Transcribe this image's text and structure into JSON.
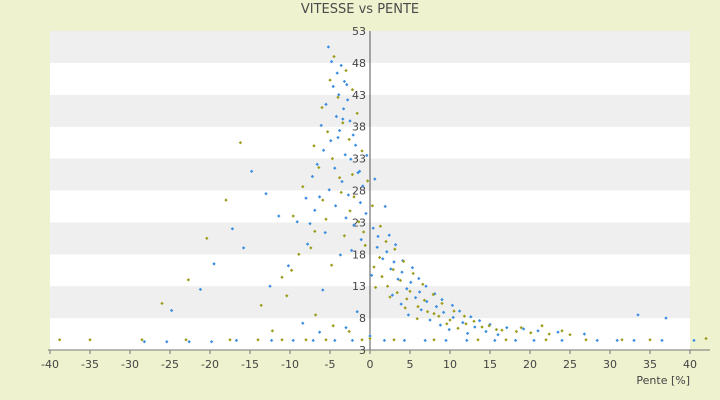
{
  "chart_data": {
    "type": "scatter",
    "title": "VITESSE vs PENTE",
    "xlabel": "Pente [%]",
    "ylabel": "",
    "xlim": [
      -40,
      40
    ],
    "ylim": [
      3,
      53
    ],
    "x_ticks": [
      -40,
      -35,
      -30,
      -25,
      -20,
      -15,
      -10,
      -5,
      0,
      5,
      10,
      15,
      20,
      25,
      30,
      35,
      40
    ],
    "y_ticks": [
      3,
      8,
      13,
      18,
      23,
      28,
      33,
      38,
      43,
      48,
      53
    ],
    "grid": "horizontal alternating bands",
    "legend": "none",
    "colors": {
      "series1": "#3a8ee0",
      "series2": "#9c9c1c",
      "band_light": "#ffffff",
      "band_dark": "#efefef",
      "background": "#eef2cf"
    },
    "series": [
      {
        "color": "#3a8ee0",
        "points": [
          [
            -5.2,
            50.5
          ],
          [
            -4.8,
            48.2
          ],
          [
            -3.6,
            47.6
          ],
          [
            -4.1,
            46.4
          ],
          [
            -3.2,
            45.1
          ],
          [
            -4.6,
            44.3
          ],
          [
            -3.9,
            43.0
          ],
          [
            -2.8,
            42.2
          ],
          [
            -5.5,
            41.5
          ],
          [
            -3.3,
            40.8
          ],
          [
            -4.2,
            39.6
          ],
          [
            -2.5,
            38.9
          ],
          [
            -6.1,
            38.2
          ],
          [
            -3.8,
            37.4
          ],
          [
            -2.1,
            36.7
          ],
          [
            -4.9,
            35.8
          ],
          [
            -1.8,
            35.1
          ],
          [
            -5.8,
            34.3
          ],
          [
            -3.1,
            33.6
          ],
          [
            -2.4,
            32.9
          ],
          [
            -6.6,
            32.1
          ],
          [
            -4.4,
            31.5
          ],
          [
            -1.5,
            30.8
          ],
          [
            -7.2,
            30.2
          ],
          [
            -3.5,
            29.4
          ],
          [
            -0.9,
            28.7
          ],
          [
            -5.1,
            28.1
          ],
          [
            -2.7,
            27.3
          ],
          [
            -8.0,
            26.8
          ],
          [
            -1.2,
            26.1
          ],
          [
            -4.3,
            25.6
          ],
          [
            -6.9,
            24.9
          ],
          [
            -0.5,
            24.4
          ],
          [
            -3.0,
            23.7
          ],
          [
            -9.1,
            23.1
          ],
          [
            -2.0,
            22.6
          ],
          [
            0.4,
            22.1
          ],
          [
            -5.6,
            21.4
          ],
          [
            1.0,
            20.8
          ],
          [
            -1.1,
            20.3
          ],
          [
            -7.8,
            19.6
          ],
          [
            0.9,
            19.1
          ],
          [
            2.1,
            18.4
          ],
          [
            -3.7,
            17.9
          ],
          [
            1.6,
            17.3
          ],
          [
            3.0,
            16.8
          ],
          [
            -10.2,
            16.2
          ],
          [
            2.6,
            15.7
          ],
          [
            4.0,
            15.2
          ],
          [
            0.2,
            14.7
          ],
          [
            3.5,
            14.1
          ],
          [
            5.1,
            13.6
          ],
          [
            -12.5,
            13.0
          ],
          [
            4.6,
            12.6
          ],
          [
            6.2,
            12.1
          ],
          [
            2.8,
            11.6
          ],
          [
            5.7,
            11.2
          ],
          [
            7.1,
            10.6
          ],
          [
            3.9,
            10.2
          ],
          [
            8.3,
            9.8
          ],
          [
            6.4,
            9.3
          ],
          [
            9.2,
            8.9
          ],
          [
            4.8,
            8.5
          ],
          [
            10.4,
            8.1
          ],
          [
            7.5,
            7.7
          ],
          [
            11.6,
            7.3
          ],
          [
            8.8,
            6.9
          ],
          [
            13.1,
            6.6
          ],
          [
            9.9,
            6.2
          ],
          [
            14.5,
            5.9
          ],
          [
            12.2,
            5.6
          ],
          [
            16.0,
            5.4
          ],
          [
            -14.8,
            31.0
          ],
          [
            -17.2,
            22.0
          ],
          [
            -19.5,
            16.5
          ],
          [
            -21.2,
            12.5
          ],
          [
            -24.8,
            9.2
          ],
          [
            -13.0,
            27.5
          ],
          [
            -11.4,
            24.0
          ],
          [
            -15.8,
            19.0
          ],
          [
            -16.7,
            4.5
          ],
          [
            -12.3,
            4.5
          ],
          [
            -9.6,
            4.5
          ],
          [
            -7.1,
            4.5
          ],
          [
            -4.4,
            4.5
          ],
          [
            -2.2,
            4.5
          ],
          [
            1.8,
            4.5
          ],
          [
            4.3,
            4.5
          ],
          [
            6.9,
            4.5
          ],
          [
            9.5,
            4.5
          ],
          [
            12.1,
            4.5
          ],
          [
            15.6,
            4.5
          ],
          [
            18.2,
            4.5
          ],
          [
            20.5,
            4.5
          ],
          [
            24.0,
            4.5
          ],
          [
            28.4,
            4.5
          ],
          [
            30.9,
            4.5
          ],
          [
            33.0,
            4.5
          ],
          [
            36.5,
            4.5
          ],
          [
            40.5,
            4.5
          ],
          [
            -25.4,
            4.3
          ],
          [
            -22.6,
            4.3
          ],
          [
            -19.8,
            4.3
          ],
          [
            -28.2,
            4.3
          ],
          [
            -6.3,
            5.8
          ],
          [
            -3.0,
            6.5
          ],
          [
            0.0,
            5.2
          ],
          [
            -1.6,
            9.0
          ],
          [
            -8.4,
            7.2
          ],
          [
            -5.9,
            12.4
          ],
          [
            1.9,
            25.5
          ],
          [
            0.6,
            29.8
          ],
          [
            -0.4,
            33.5
          ],
          [
            -2.9,
            44.6
          ],
          [
            -3.4,
            39.2
          ],
          [
            -4.0,
            36.3
          ],
          [
            -1.3,
            31.0
          ],
          [
            -6.3,
            27.0
          ],
          [
            -7.5,
            22.8
          ],
          [
            -2.3,
            18.6
          ],
          [
            2.4,
            21.0
          ],
          [
            3.2,
            19.5
          ],
          [
            4.1,
            17.0
          ],
          [
            5.3,
            15.9
          ],
          [
            6.1,
            14.2
          ],
          [
            7.0,
            13.0
          ],
          [
            8.1,
            11.8
          ],
          [
            9.0,
            10.9
          ],
          [
            10.3,
            10.0
          ],
          [
            11.2,
            9.1
          ],
          [
            12.6,
            8.2
          ],
          [
            13.7,
            7.6
          ],
          [
            15.0,
            7.0
          ],
          [
            17.1,
            6.5
          ],
          [
            19.2,
            6.3
          ],
          [
            21.0,
            6.0
          ],
          [
            23.5,
            5.8
          ],
          [
            26.8,
            5.5
          ],
          [
            33.5,
            8.5
          ],
          [
            37.0,
            8.0
          ]
        ]
      },
      {
        "color": "#9c9c1c",
        "points": [
          [
            -4.5,
            49.0
          ],
          [
            -3.0,
            46.8
          ],
          [
            -5.0,
            45.3
          ],
          [
            -2.2,
            43.8
          ],
          [
            -4.0,
            42.6
          ],
          [
            -6.0,
            41.0
          ],
          [
            -1.6,
            40.1
          ],
          [
            -3.4,
            38.6
          ],
          [
            -5.3,
            37.2
          ],
          [
            -2.6,
            36.0
          ],
          [
            -7.0,
            35.0
          ],
          [
            -1.0,
            34.2
          ],
          [
            -4.7,
            33.0
          ],
          [
            -6.4,
            31.6
          ],
          [
            -2.2,
            30.5
          ],
          [
            -0.3,
            29.5
          ],
          [
            -8.4,
            28.6
          ],
          [
            -3.6,
            27.7
          ],
          [
            -5.9,
            26.5
          ],
          [
            0.3,
            25.6
          ],
          [
            -2.5,
            24.8
          ],
          [
            -9.6,
            24.0
          ],
          [
            -1.4,
            23.1
          ],
          [
            1.3,
            22.4
          ],
          [
            -6.9,
            21.6
          ],
          [
            -3.2,
            20.9
          ],
          [
            2.0,
            20.0
          ],
          [
            -0.6,
            19.4
          ],
          [
            3.1,
            18.8
          ],
          [
            -8.9,
            18.0
          ],
          [
            1.2,
            17.5
          ],
          [
            4.2,
            16.9
          ],
          [
            -4.8,
            16.3
          ],
          [
            2.9,
            15.6
          ],
          [
            5.4,
            15.0
          ],
          [
            -11.0,
            14.4
          ],
          [
            3.8,
            13.9
          ],
          [
            6.6,
            13.3
          ],
          [
            0.7,
            12.8
          ],
          [
            5.0,
            12.2
          ],
          [
            7.9,
            11.7
          ],
          [
            2.5,
            11.3
          ],
          [
            6.8,
            10.8
          ],
          [
            9.0,
            10.3
          ],
          [
            -13.6,
            10.0
          ],
          [
            4.4,
            9.6
          ],
          [
            10.5,
            9.1
          ],
          [
            8.0,
            8.7
          ],
          [
            11.8,
            8.3
          ],
          [
            5.9,
            7.9
          ],
          [
            13.0,
            7.5
          ],
          [
            9.6,
            7.1
          ],
          [
            14.9,
            6.8
          ],
          [
            11.0,
            6.4
          ],
          [
            16.5,
            6.1
          ],
          [
            18.3,
            5.9
          ],
          [
            20.1,
            5.7
          ],
          [
            22.4,
            5.5
          ],
          [
            25.0,
            5.4
          ],
          [
            -16.2,
            35.5
          ],
          [
            -18.0,
            26.5
          ],
          [
            -20.4,
            20.5
          ],
          [
            -22.7,
            14.0
          ],
          [
            -26.0,
            10.3
          ],
          [
            -38.8,
            4.6
          ],
          [
            -35.0,
            4.6
          ],
          [
            -28.5,
            4.6
          ],
          [
            -23.0,
            4.6
          ],
          [
            -17.5,
            4.6
          ],
          [
            -14.0,
            4.6
          ],
          [
            -11.0,
            4.6
          ],
          [
            -8.0,
            4.6
          ],
          [
            -5.5,
            4.6
          ],
          [
            -1.0,
            4.6
          ],
          [
            0.0,
            4.8
          ],
          [
            3.0,
            4.6
          ],
          [
            8.0,
            4.6
          ],
          [
            13.5,
            4.6
          ],
          [
            17.0,
            4.6
          ],
          [
            22.0,
            4.6
          ],
          [
            27.0,
            4.6
          ],
          [
            31.5,
            4.6
          ],
          [
            35.0,
            4.6
          ],
          [
            42.0,
            4.8
          ],
          [
            -3.8,
            30.0
          ],
          [
            -2.0,
            27.0
          ],
          [
            -0.8,
            21.5
          ],
          [
            -5.5,
            23.5
          ],
          [
            -7.4,
            19.0
          ],
          [
            -9.8,
            15.5
          ],
          [
            0.5,
            16.0
          ],
          [
            1.5,
            14.5
          ],
          [
            2.2,
            13.0
          ],
          [
            3.4,
            12.0
          ],
          [
            4.6,
            11.0
          ],
          [
            6.0,
            9.8
          ],
          [
            7.2,
            9.0
          ],
          [
            8.6,
            8.3
          ],
          [
            10.0,
            7.7
          ],
          [
            12.0,
            7.1
          ],
          [
            14.0,
            6.6
          ],
          [
            15.8,
            6.2
          ],
          [
            18.9,
            6.5
          ],
          [
            21.5,
            6.8
          ],
          [
            24.0,
            6.0
          ],
          [
            -6.8,
            8.5
          ],
          [
            -4.6,
            6.8
          ],
          [
            -2.6,
            5.9
          ],
          [
            -10.4,
            11.5
          ],
          [
            -12.2,
            6.0
          ]
        ]
      }
    ]
  }
}
